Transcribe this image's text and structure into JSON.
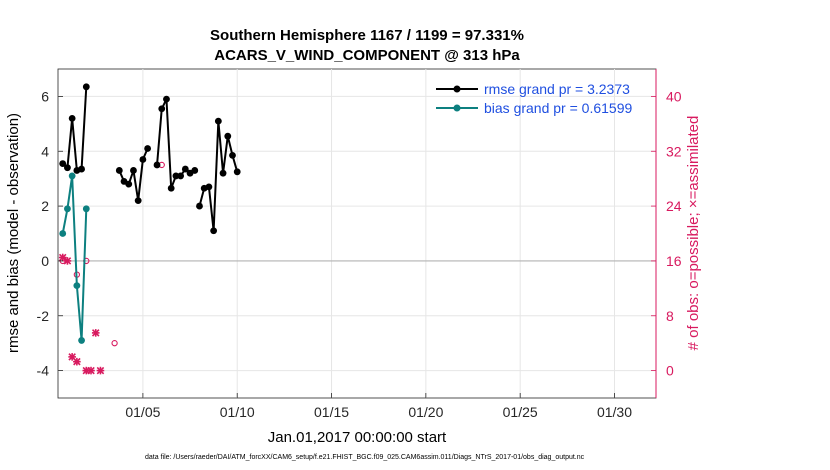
{
  "chart_data": {
    "type": "line",
    "title": "Southern Hemisphere 1167 / 1199 = 97.331%",
    "subtitle": "ACARS_V_WIND_COMPONENT @ 313 hPa",
    "xlabel": "Jan.01,2017 00:00:00 start",
    "ylabel": "rmse and bias (model - observation)",
    "y2label": "# of obs: o=possible; ×=assimilated",
    "footnote": "data file: /Users/raeder/DAI/ATM_forcXX/CAM6_setup/f.e21.FHIST_BGC.f09_025.CAM6assim.011/Diags_NTrS_2017-01/obs_diag_output.nc",
    "xlim": [
      0.5,
      32.2
    ],
    "ylim": [
      -5,
      7
    ],
    "y2lim": [
      -4,
      44
    ],
    "x_ticks": [
      5,
      10,
      15,
      20,
      25,
      30
    ],
    "x_tick_labels": [
      "01/05",
      "01/10",
      "01/15",
      "01/20",
      "01/25",
      "01/30"
    ],
    "y_ticks": [
      -4,
      -2,
      0,
      2,
      4,
      6
    ],
    "y2_ticks": [
      0,
      8,
      16,
      24,
      32,
      40
    ],
    "colors": {
      "rmse": "#000000",
      "bias": "#0d8080",
      "obs": "#d81a5f",
      "zero": "#b4b4b4",
      "legend_text": "#1f4fe0"
    },
    "legend": {
      "placement": "top-right",
      "rmse_label": "rmse grand pr = 3.2373",
      "bias_label": "bias grand pr = 0.61599"
    },
    "series": [
      {
        "name": "rmse grand pr = 3.2373",
        "segments": [
          [
            [
              0.75,
              3.55
            ],
            [
              1.0,
              3.4
            ],
            [
              1.25,
              5.2
            ],
            [
              1.5,
              3.3
            ],
            [
              1.75,
              3.35
            ],
            [
              2.0,
              6.35
            ]
          ],
          [
            [
              3.75,
              3.3
            ],
            [
              4.0,
              2.9
            ],
            [
              4.25,
              2.8
            ],
            [
              4.5,
              3.3
            ],
            [
              4.75,
              2.2
            ],
            [
              5.0,
              3.7
            ],
            [
              5.25,
              4.1
            ]
          ],
          [
            [
              5.75,
              3.5
            ],
            [
              6.0,
              5.55
            ],
            [
              6.25,
              5.9
            ],
            [
              6.5,
              2.65
            ],
            [
              6.75,
              3.1
            ],
            [
              7.0,
              3.1
            ],
            [
              7.25,
              3.35
            ],
            [
              7.5,
              3.2
            ],
            [
              7.75,
              3.3
            ]
          ],
          [
            [
              8.0,
              2.0
            ],
            [
              8.25,
              2.65
            ],
            [
              8.5,
              2.7
            ],
            [
              8.75,
              1.1
            ],
            [
              9.0,
              5.1
            ],
            [
              9.25,
              3.2
            ],
            [
              9.5,
              4.55
            ],
            [
              9.75,
              3.85
            ],
            [
              10.0,
              3.25
            ]
          ]
        ]
      },
      {
        "name": "bias grand pr = 0.61599",
        "segments": [
          [
            [
              0.75,
              1.0
            ],
            [
              1.0,
              1.9
            ],
            [
              1.25,
              3.1
            ],
            [
              1.5,
              -0.9
            ],
            [
              1.75,
              -2.9
            ],
            [
              2.0,
              1.9
            ]
          ]
        ]
      }
    ],
    "obs_possible": [
      [
        0.75,
        16
      ],
      [
        1.5,
        14
      ],
      [
        2.0,
        16
      ],
      [
        3.5,
        4
      ],
      [
        6.0,
        30
      ]
    ],
    "obs_assimilated": [
      [
        0.75,
        16.5
      ],
      [
        1.0,
        16
      ],
      [
        1.25,
        2
      ],
      [
        1.5,
        1.3
      ],
      [
        2.0,
        0
      ],
      [
        2.25,
        0
      ],
      [
        2.5,
        5.5
      ],
      [
        2.75,
        0
      ]
    ]
  }
}
